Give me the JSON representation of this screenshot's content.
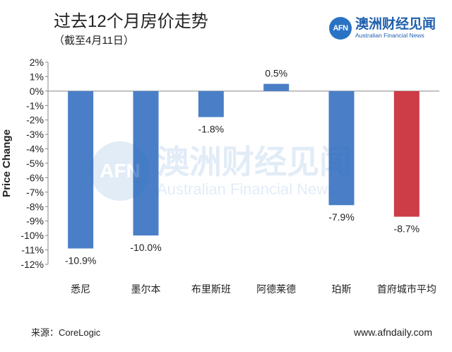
{
  "header": {
    "title": "过去12个月房价走势",
    "subtitle": "（截至4月11日）"
  },
  "brand": {
    "logo_text": "AFN",
    "name_cn": "澳洲财经见闻",
    "name_en": "Australian Financial News",
    "color": "#2a73c4"
  },
  "watermark": {
    "logo_text": "AFN",
    "name_cn": "澳洲财经见闻",
    "name_en": "Australian Financial News"
  },
  "footer": {
    "source": "来源：CoreLogic",
    "website": "www.afndaily.com"
  },
  "chart_data": {
    "type": "bar",
    "title": "过去12个月房价走势",
    "subtitle": "（截至4月11日）",
    "xlabel": "",
    "ylabel": "Price Change",
    "ylim": [
      -12,
      2
    ],
    "yticks": [
      2,
      1,
      0,
      -1,
      -2,
      -3,
      -4,
      -5,
      -6,
      -7,
      -8,
      -9,
      -10,
      -11,
      -12
    ],
    "ytick_labels": [
      "2%",
      "1%",
      "0%",
      "-1%",
      "-2%",
      "-3%",
      "-4%",
      "-5%",
      "-6%",
      "-7%",
      "-8%",
      "-9%",
      "-10%",
      "-11%",
      "-12%"
    ],
    "categories": [
      "悉尼",
      "墨尔本",
      "布里斯班",
      "阿德莱德",
      "珀斯",
      "首府城市平均"
    ],
    "values": [
      -10.9,
      -10.0,
      -1.8,
      0.5,
      -7.9,
      -8.7
    ],
    "data_labels": [
      "-10.9%",
      "-10.0%",
      "-1.8%",
      "0.5%",
      "-7.9%",
      "-8.7%"
    ],
    "colors": [
      "#4a7ec7",
      "#4a7ec7",
      "#4a7ec7",
      "#4a7ec7",
      "#4a7ec7",
      "#cc3d47"
    ],
    "grid": false
  }
}
